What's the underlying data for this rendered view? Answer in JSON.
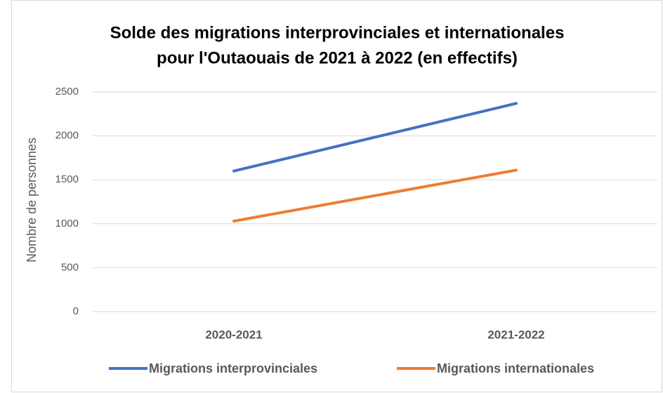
{
  "chart_data": {
    "type": "line",
    "title": [
      "Solde des migrations interprovinciales et internationales",
      "pour l'Outaouais de 2021 à 2022 (en effectifs)"
    ],
    "y_label": "Nombre de personnes",
    "categories": [
      "2020-2021",
      "2021-2022"
    ],
    "series": [
      {
        "name": "Migrations interprovinciales",
        "color": "#4472c4",
        "values": [
          1600,
          2370
        ]
      },
      {
        "name": "Migrations internationales",
        "color": "#ed7d31",
        "values": [
          1030,
          1610
        ]
      }
    ],
    "ylim": [
      0,
      2500
    ],
    "yticks": [
      0,
      500,
      1000,
      1500,
      2000,
      2500
    ],
    "grid": true,
    "legend": "bottom"
  }
}
